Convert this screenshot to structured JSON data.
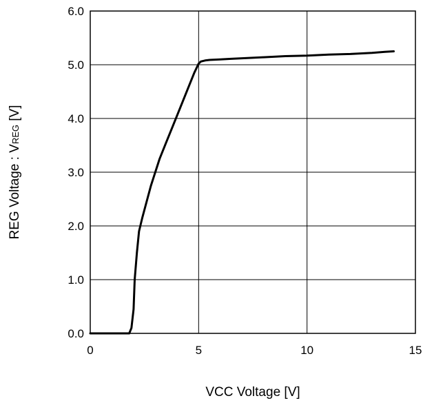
{
  "chart_data": {
    "type": "line",
    "title": "",
    "xlabel": "VCC Voltage [V]",
    "ylabel": {
      "prefix": "REG Voltage : V",
      "subscript": "REG",
      "suffix": " [V]"
    },
    "xlim": [
      0,
      15
    ],
    "ylim": [
      0,
      6
    ],
    "x_ticks": [
      0,
      5,
      10,
      15
    ],
    "x_tick_labels": [
      "0",
      "5",
      "10",
      "15"
    ],
    "y_ticks": [
      0,
      1,
      2,
      3,
      4,
      5,
      6
    ],
    "y_tick_labels": [
      "0.0",
      "1.0",
      "2.0",
      "3.0",
      "4.0",
      "5.0",
      "6.0"
    ],
    "grid": true,
    "legend": "none",
    "line_color": "#000000",
    "series": [
      {
        "x": [
          0,
          1.8,
          1.9,
          2.0,
          2.05,
          2.15,
          2.25,
          2.4,
          2.6,
          2.8,
          3.0,
          3.2,
          3.5,
          3.8,
          4.0,
          4.3,
          4.6,
          4.8,
          5.0,
          5.1,
          5.3,
          5.5,
          6.0,
          6.5,
          7.0,
          8.0,
          9.0,
          10.0,
          11.0,
          12.0,
          13.0,
          13.6,
          14.0
        ],
        "y": [
          0.0,
          0.0,
          0.1,
          0.45,
          1.0,
          1.5,
          1.9,
          2.15,
          2.45,
          2.75,
          3.0,
          3.25,
          3.55,
          3.85,
          4.05,
          4.35,
          4.65,
          4.85,
          5.02,
          5.06,
          5.08,
          5.09,
          5.1,
          5.11,
          5.12,
          5.14,
          5.16,
          5.17,
          5.19,
          5.2,
          5.22,
          5.24,
          5.25
        ]
      }
    ]
  }
}
